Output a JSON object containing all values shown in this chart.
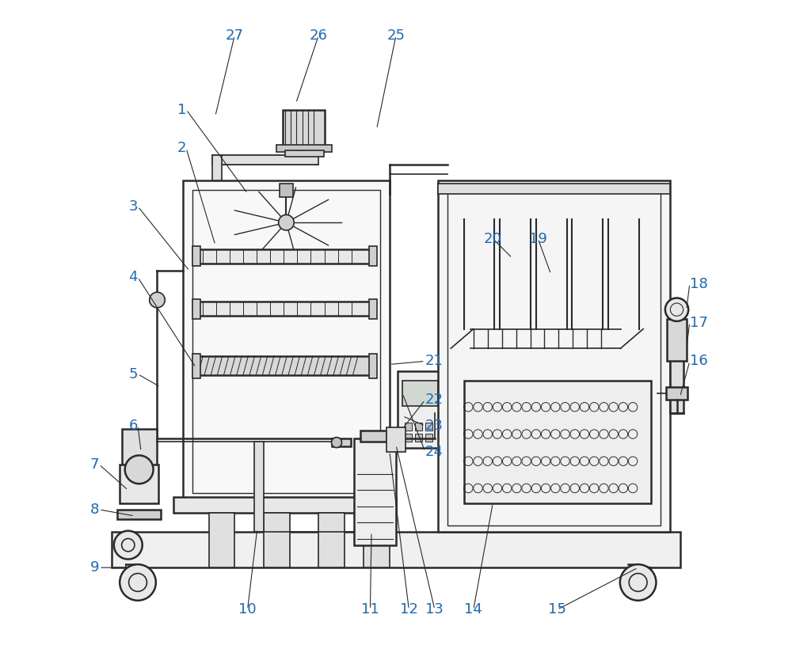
{
  "bg_color": "#ffffff",
  "line_color": "#2a2a2a",
  "label_color": "#1a6abf",
  "label_fontsize": 13,
  "annotation_line_color": "#2a2a2a",
  "figsize": [
    10,
    8.15
  ],
  "dpi": 100
}
